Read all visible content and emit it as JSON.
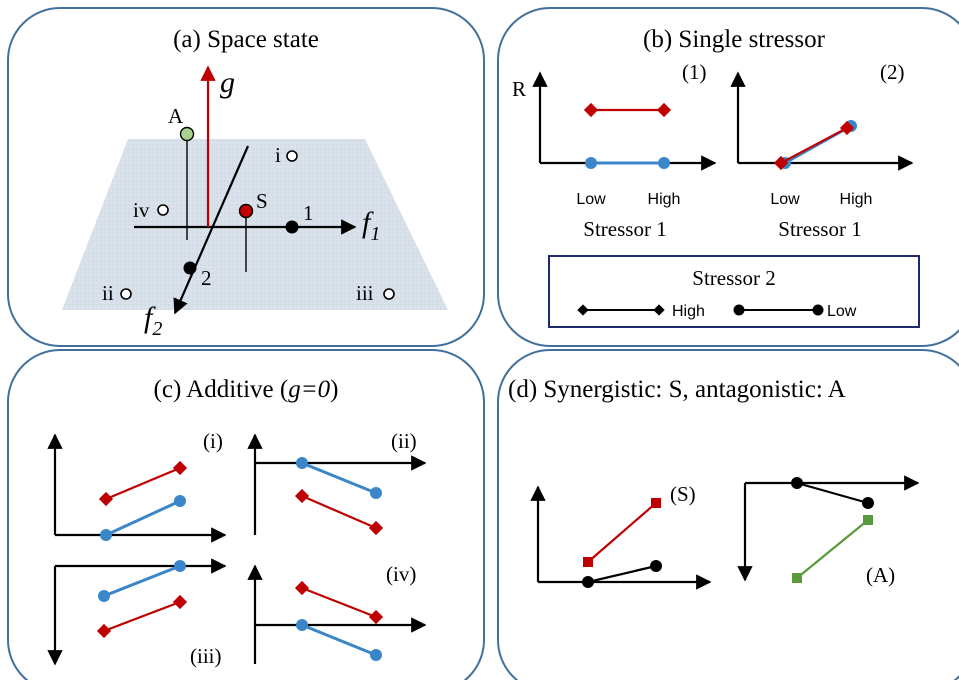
{
  "panels": {
    "a": {
      "title": "(a) Space state",
      "axis_g": "g",
      "axis_f1": "f",
      "axis_f1_sub": "1",
      "axis_f2": "f",
      "axis_f2_sub": "2",
      "point_A": "A",
      "point_S": "S",
      "point_1": "1",
      "point_2": "2",
      "quadrant_i": "i",
      "quadrant_ii": "ii",
      "quadrant_iii": "iii",
      "quadrant_iv": "iv"
    },
    "b": {
      "title": "(b) Single stressor",
      "sub1": "(1)",
      "sub2": "(2)",
      "ylabel": "R",
      "tick_low": "Low",
      "tick_high": "High",
      "xlabel": "Stressor 1",
      "legend": {
        "title": "Stressor 2",
        "high": "High",
        "low": "Low"
      }
    },
    "c": {
      "title_prefix": "(c) Additive (",
      "title_eq": "g=0",
      "title_suffix": ")",
      "sub_i": "(i)",
      "sub_ii": "(ii)",
      "sub_iii": "(iii)",
      "sub_iv": "(iv)"
    },
    "d": {
      "title": "(d) Synergistic: S, antagonistic: A",
      "sub_s": "(S)",
      "sub_a": "(A)"
    }
  },
  "colors": {
    "high_series": "#c00000",
    "low_series": "#3a86c8",
    "black_series": "#000000",
    "antagonistic_series": "#5b9a3c",
    "panel_border": "#41719c",
    "plane": "#d9e1ea",
    "point_A": "#a9d18e",
    "point_S": "#c00000"
  }
}
